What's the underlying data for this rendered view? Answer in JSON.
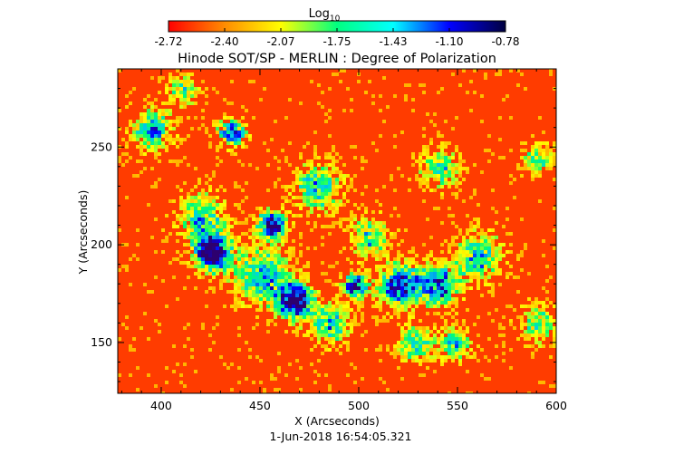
{
  "chart_data": {
    "type": "heatmap",
    "title": "Hinode SOT/SP - MERLIN : Degree of Polarization",
    "xlabel": "X (Arcseconds)",
    "ylabel": "Y (Arcseconds)",
    "timestamp": "1-Jun-2018 16:54:05.321",
    "colorbar": {
      "label": "Log",
      "label_subscript": "10",
      "tick_labels": [
        "-2.72",
        "-2.40",
        "-2.07",
        "-1.75",
        "-1.43",
        "-1.10",
        "-0.78"
      ],
      "range": [
        -2.72,
        -0.78
      ],
      "colors": [
        "#ff0000",
        "#ff8c00",
        "#ffff00",
        "#00ff80",
        "#00ffff",
        "#0000ff",
        "#000040"
      ]
    },
    "xlim": [
      378,
      600
    ],
    "ylim": [
      124,
      290
    ],
    "x_ticks": [
      400,
      450,
      500,
      550,
      600
    ],
    "y_ticks": [
      150,
      200,
      250
    ],
    "x_tick_labels": [
      "400",
      "450",
      "500",
      "550",
      "600"
    ],
    "y_tick_labels": [
      "150",
      "200",
      "250"
    ]
  }
}
